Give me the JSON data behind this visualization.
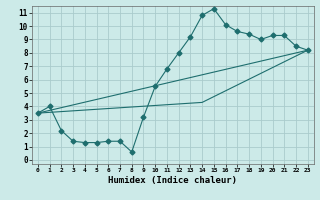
{
  "xlabel": "Humidex (Indice chaleur)",
  "bg_color": "#cceae8",
  "grid_color": "#aacccc",
  "line_color": "#1e6e6e",
  "xlim": [
    -0.5,
    23.5
  ],
  "ylim": [
    -0.3,
    11.5
  ],
  "xticks": [
    0,
    1,
    2,
    3,
    4,
    5,
    6,
    7,
    8,
    9,
    10,
    11,
    12,
    13,
    14,
    15,
    16,
    17,
    18,
    19,
    20,
    21,
    22,
    23
  ],
  "yticks": [
    0,
    1,
    2,
    3,
    4,
    5,
    6,
    7,
    8,
    9,
    10,
    11
  ],
  "line1_x": [
    0,
    1,
    2,
    3,
    4,
    5,
    6,
    7,
    8,
    9,
    10,
    11,
    12,
    13,
    14,
    15,
    16,
    17,
    18,
    19,
    20,
    21,
    22,
    23
  ],
  "line1_y": [
    3.5,
    4.0,
    2.2,
    1.4,
    1.3,
    1.3,
    1.4,
    1.4,
    0.6,
    3.2,
    5.5,
    6.8,
    8.0,
    9.2,
    10.8,
    11.3,
    10.1,
    9.6,
    9.4,
    9.0,
    9.3,
    9.3,
    8.5,
    8.2
  ],
  "line2_x": [
    0,
    23
  ],
  "line2_y": [
    3.5,
    8.2
  ],
  "line3_x": [
    0,
    14,
    23
  ],
  "line3_y": [
    3.5,
    4.3,
    8.2
  ],
  "marker_size": 2.5,
  "line_width": 0.8
}
